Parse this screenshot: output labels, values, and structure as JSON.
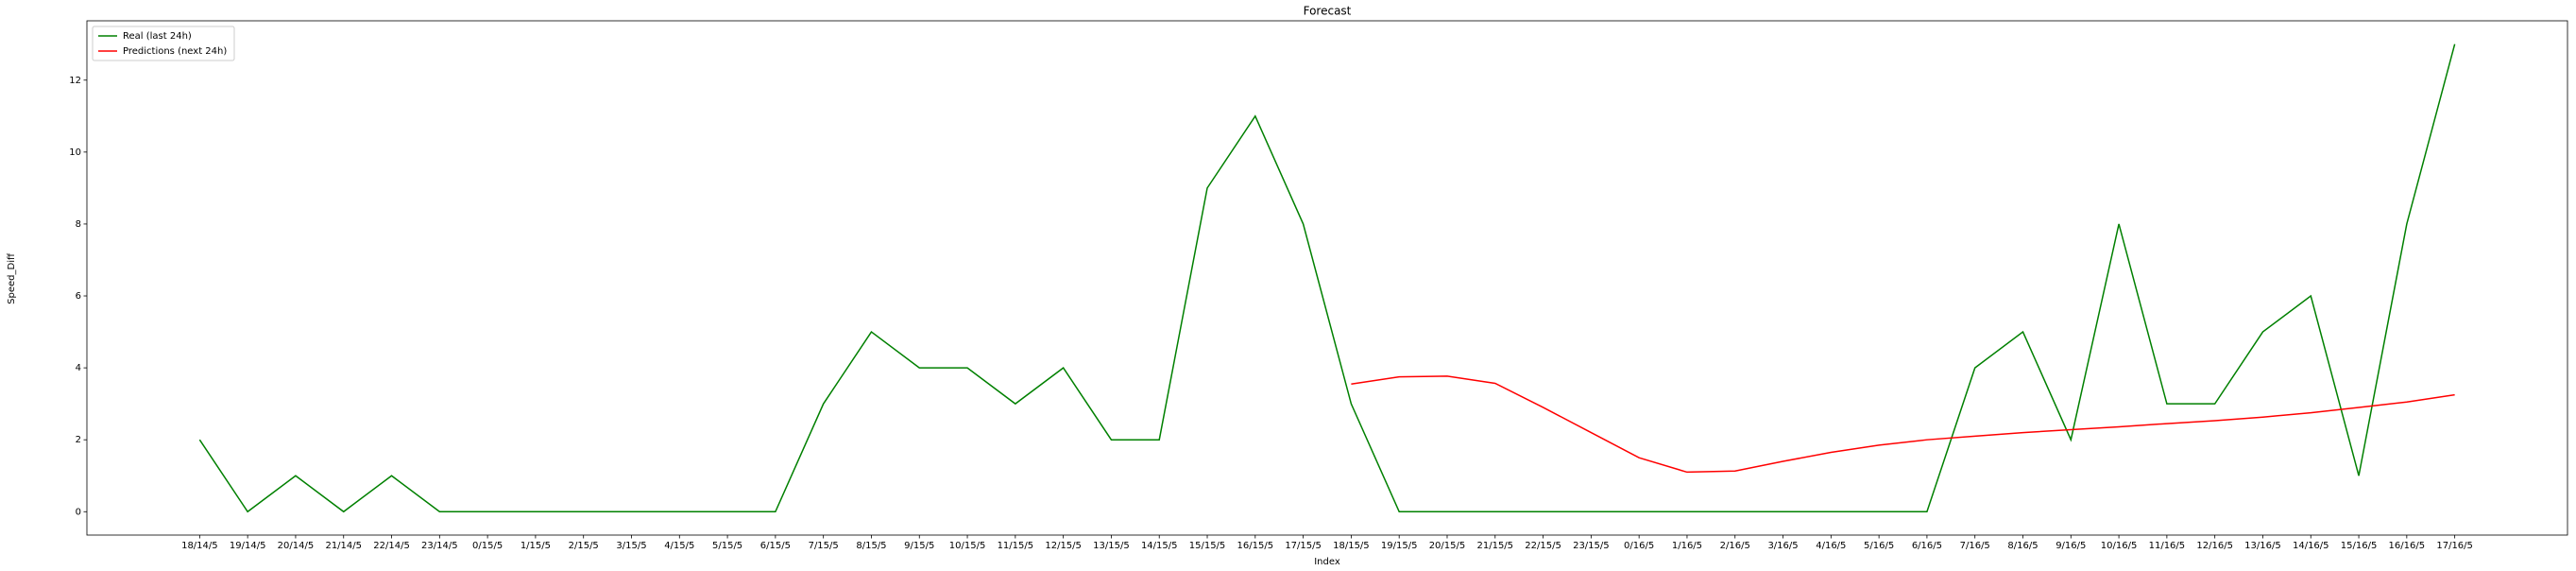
{
  "chart_data": {
    "type": "line",
    "title": "Forecast",
    "x_label": "Index",
    "y_label": "Speed_Diff",
    "categories": [
      "18/14/5",
      "19/14/5",
      "20/14/5",
      "21/14/5",
      "22/14/5",
      "23/14/5",
      "0/15/5",
      "1/15/5",
      "2/15/5",
      "3/15/5",
      "4/15/5",
      "5/15/5",
      "6/15/5",
      "7/15/5",
      "8/15/5",
      "9/15/5",
      "10/15/5",
      "11/15/5",
      "12/15/5",
      "13/15/5",
      "14/15/5",
      "15/15/5",
      "16/15/5",
      "17/15/5",
      "18/15/5",
      "19/15/5",
      "20/15/5",
      "21/15/5",
      "22/15/5",
      "23/15/5",
      "0/16/5",
      "1/16/5",
      "2/16/5",
      "3/16/5",
      "4/16/5",
      "5/16/5",
      "6/16/5",
      "7/16/5",
      "8/16/5",
      "9/16/5",
      "10/16/5",
      "11/16/5",
      "12/16/5",
      "13/16/5",
      "14/16/5",
      "15/16/5",
      "16/16/5",
      "17/16/5"
    ],
    "series": [
      {
        "name": "Real (last 24h)",
        "color": "green",
        "values": [
          2,
          0,
          1,
          0,
          1,
          0,
          0,
          0,
          0,
          0,
          0,
          0,
          0,
          3,
          5,
          4,
          4,
          3,
          4,
          2,
          2,
          9,
          11,
          8,
          3,
          0,
          0,
          0,
          0,
          0,
          0,
          0,
          0,
          0,
          0,
          0,
          0,
          4,
          5,
          2,
          8,
          3,
          3,
          5,
          6,
          1,
          8,
          13
        ]
      },
      {
        "name": "Predictions (next 24h)",
        "color": "red",
        "values": [
          null,
          null,
          null,
          null,
          null,
          null,
          null,
          null,
          null,
          null,
          null,
          null,
          null,
          null,
          null,
          null,
          null,
          null,
          null,
          null,
          null,
          null,
          null,
          null,
          3.55,
          3.75,
          3.77,
          3.57,
          2.9,
          2.2,
          1.5,
          1.1,
          1.13,
          1.4,
          1.65,
          1.85,
          2.0,
          2.1,
          2.2,
          2.28,
          2.36,
          2.45,
          2.53,
          2.63,
          2.75,
          2.9,
          3.05,
          3.25
        ]
      }
    ],
    "ylim": [
      -0.65,
      13.65
    ],
    "yticks": [
      0,
      2,
      4,
      6,
      8,
      10,
      12
    ],
    "legend": "upper left"
  }
}
